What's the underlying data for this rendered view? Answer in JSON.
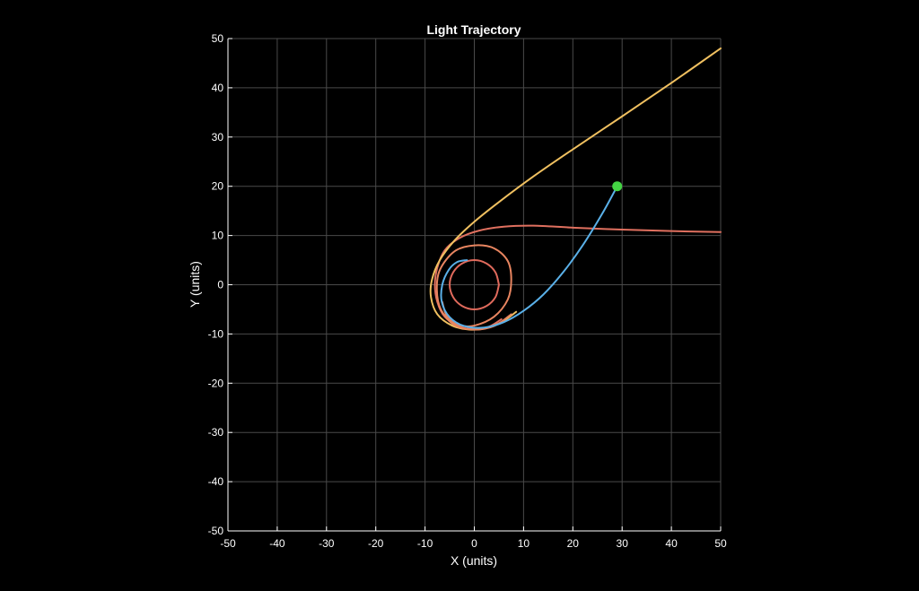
{
  "chart_data": {
    "type": "line",
    "title": "Light Trajectory",
    "xlabel": "X (units)",
    "ylabel": "Y (units)",
    "xlim": [
      -50,
      50
    ],
    "ylim": [
      -50,
      50
    ],
    "xticks": [
      "-50",
      "-40",
      "-30",
      "-20",
      "-10",
      "0",
      "10",
      "20",
      "30",
      "40",
      "50"
    ],
    "yticks": [
      "50",
      "40",
      "30",
      "20",
      "10",
      "0",
      "-10",
      "-20",
      "-30",
      "-40",
      "-50"
    ],
    "grid": true,
    "background": "#000000",
    "grid_color": "#4a4a4a",
    "axis_color": "#ffffff",
    "series": [
      {
        "color": "#e06a5c",
        "points": [
          [
            5,
            0
          ],
          [
            4.3,
            2.5
          ],
          [
            2.5,
            4.3
          ],
          [
            0,
            5
          ],
          [
            -2.5,
            4.3
          ],
          [
            -4.3,
            2.5
          ],
          [
            -5,
            0
          ],
          [
            -4.3,
            -2.5
          ],
          [
            -2.5,
            -4.3
          ],
          [
            0,
            -5
          ],
          [
            2.5,
            -4.3
          ],
          [
            4.3,
            -2.5
          ],
          [
            5,
            0
          ]
        ]
      },
      {
        "color": "#e0705f",
        "points": [
          [
            50,
            10.7
          ],
          [
            40,
            10.9
          ],
          [
            30,
            11.2
          ],
          [
            20,
            11.6
          ],
          [
            12,
            12
          ],
          [
            6,
            11.8
          ],
          [
            1,
            11
          ],
          [
            -3,
            9.5
          ],
          [
            -6,
            7
          ],
          [
            -7.5,
            3.5
          ],
          [
            -8,
            0
          ],
          [
            -7.5,
            -3.5
          ],
          [
            -6,
            -6.5
          ],
          [
            -3,
            -8.5
          ],
          [
            0,
            -9
          ],
          [
            3,
            -8.5
          ],
          [
            5.5,
            -7
          ]
        ]
      },
      {
        "color": "#f0c060",
        "points": [
          [
            50,
            48
          ],
          [
            40,
            41
          ],
          [
            30,
            34.2
          ],
          [
            20,
            27.5
          ],
          [
            12,
            22
          ],
          [
            5,
            16.8
          ],
          [
            0,
            12.8
          ],
          [
            -4,
            9
          ],
          [
            -7,
            5
          ],
          [
            -8.6,
            1
          ],
          [
            -8.8,
            -2.5
          ],
          [
            -7.5,
            -6
          ],
          [
            -4.5,
            -8.3
          ],
          [
            -1,
            -9.1
          ],
          [
            2.5,
            -8.8
          ],
          [
            6,
            -7.3
          ],
          [
            8.5,
            -5.5
          ]
        ]
      },
      {
        "color": "#e88560",
        "points": [
          [
            7.5,
            -6
          ],
          [
            4,
            -8.4
          ],
          [
            0,
            -9.1
          ],
          [
            -4,
            -8.2
          ],
          [
            -6.8,
            -5
          ],
          [
            -7.6,
            -1
          ],
          [
            -7,
            3
          ],
          [
            -4,
            6.8
          ],
          [
            0,
            8
          ],
          [
            4,
            7.4
          ],
          [
            6.8,
            4.8
          ],
          [
            7.5,
            1
          ],
          [
            6.8,
            -3
          ],
          [
            4,
            -6.5
          ],
          [
            0,
            -8.3
          ],
          [
            -3,
            -8.2
          ],
          [
            -5.5,
            -6.5
          ],
          [
            -6.5,
            -3.5
          ]
        ]
      },
      {
        "color": "#5ab0e8",
        "points": [
          [
            29,
            20
          ],
          [
            26,
            14.5
          ],
          [
            22,
            8
          ],
          [
            18,
            2.5
          ],
          [
            14,
            -2
          ],
          [
            10,
            -5.3
          ],
          [
            6,
            -7.6
          ],
          [
            2,
            -8.7
          ],
          [
            -2,
            -8.4
          ],
          [
            -5,
            -6.6
          ],
          [
            -6.6,
            -3.5
          ],
          [
            -6.5,
            0
          ],
          [
            -5.2,
            3
          ],
          [
            -3.5,
            4.6
          ],
          [
            -1.5,
            5
          ]
        ]
      }
    ],
    "markers": [
      {
        "x": 29,
        "y": 20,
        "color": "#44d444"
      }
    ]
  }
}
